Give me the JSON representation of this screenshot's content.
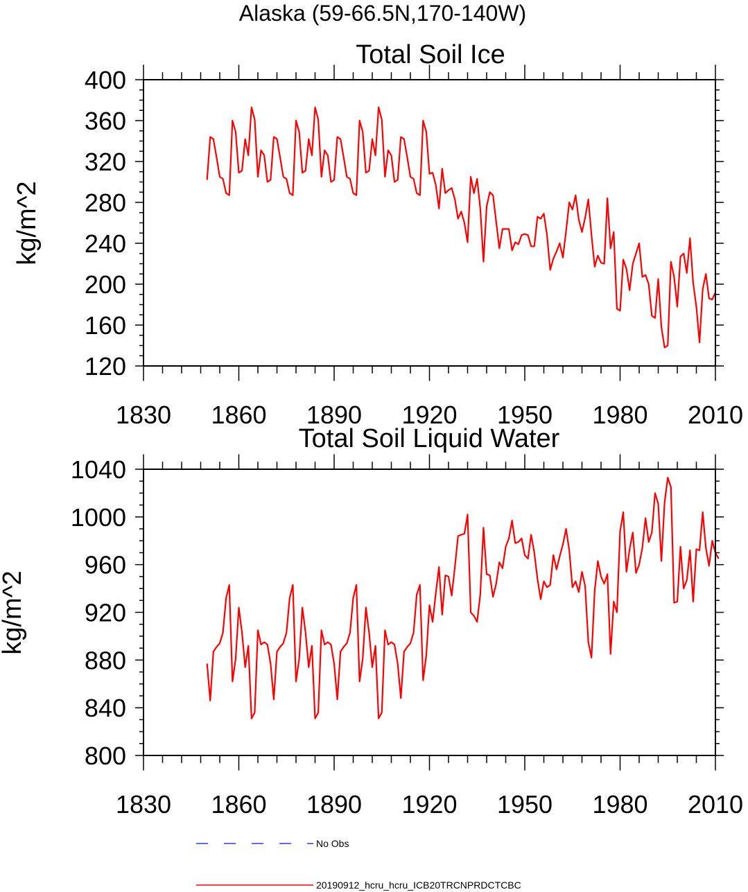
{
  "figure_title": "Alaska (59-66.5N,170-140W)",
  "legend": [
    {
      "label": "No Obs",
      "color": "#3333ff",
      "style": "dashed"
    },
    {
      "label": "20190912_hcru_hcru_ICB20TRCNPRDCTCBC",
      "color": "#ff0000",
      "style": "solid"
    }
  ],
  "chart_data": [
    {
      "type": "line",
      "title": "Total Soil Ice",
      "xlabel": "",
      "ylabel": "kg/m^2",
      "xlim": [
        1830,
        2010
      ],
      "ylim": [
        120,
        400
      ],
      "xticks": [
        1830,
        1860,
        1890,
        1920,
        1950,
        1980,
        2010
      ],
      "yticks": [
        120,
        160,
        200,
        240,
        280,
        320,
        360,
        400
      ],
      "series": [
        {
          "name": "20190912_hcru_hcru_ICB20TRCNPRDCTCBC",
          "color": "#ff0000",
          "x_start": 1850,
          "x_step": 1,
          "values": [
            302,
            344,
            342,
            324,
            305,
            303,
            289,
            287,
            360,
            349,
            309,
            311,
            342,
            326,
            373,
            361,
            305,
            331,
            326,
            300,
            302,
            344,
            342,
            324,
            305,
            303,
            289,
            287,
            360,
            349,
            309,
            311,
            342,
            326,
            373,
            361,
            305,
            331,
            326,
            300,
            302,
            344,
            342,
            324,
            305,
            303,
            289,
            287,
            360,
            349,
            309,
            311,
            342,
            326,
            373,
            361,
            305,
            331,
            326,
            300,
            302,
            344,
            342,
            324,
            305,
            303,
            289,
            287,
            360,
            349,
            308,
            309,
            297,
            274,
            313,
            289,
            292,
            294,
            283,
            264,
            271,
            260,
            241,
            305,
            289,
            303,
            274,
            222,
            276,
            290,
            287,
            261,
            235,
            254,
            254,
            254,
            233,
            241,
            239,
            248,
            249,
            248,
            237,
            237,
            266,
            264,
            269,
            248,
            214,
            225,
            232,
            240,
            226,
            252,
            280,
            273,
            287,
            263,
            251,
            265,
            283,
            248,
            217,
            228,
            221,
            220,
            284,
            235,
            251,
            176,
            174,
            224,
            215,
            194,
            220,
            230,
            240,
            207,
            209,
            200,
            169,
            167,
            205,
            158,
            138,
            140,
            222,
            207,
            178,
            227,
            230,
            211,
            245,
            201,
            178,
            143,
            195,
            210,
            186,
            185,
            192
          ]
        }
      ]
    },
    {
      "type": "line",
      "title": "Total Soil Liquid Water",
      "xlabel": "",
      "ylabel": "kg/m^2",
      "xlim": [
        1830,
        2010
      ],
      "ylim": [
        800,
        1040
      ],
      "xticks": [
        1830,
        1860,
        1890,
        1920,
        1950,
        1980,
        2010
      ],
      "yticks": [
        800,
        840,
        880,
        920,
        960,
        1000,
        1040
      ],
      "series": [
        {
          "name": "20190912_hcru_hcru_ICB20TRCNPRDCTCBC",
          "color": "#ff0000",
          "x_start": 1850,
          "x_step": 1,
          "values": [
            877,
            846,
            887,
            891,
            894,
            903,
            932,
            943,
            862,
            881,
            924,
            903,
            874,
            892,
            831,
            836,
            905,
            893,
            895,
            893,
            877,
            847,
            887,
            891,
            894,
            903,
            932,
            943,
            862,
            881,
            924,
            903,
            874,
            892,
            831,
            836,
            905,
            893,
            895,
            893,
            877,
            847,
            887,
            891,
            894,
            903,
            932,
            943,
            862,
            881,
            924,
            903,
            874,
            892,
            831,
            836,
            905,
            893,
            895,
            893,
            877,
            848,
            887,
            891,
            894,
            903,
            935,
            943,
            863,
            884,
            926,
            912,
            936,
            958,
            918,
            951,
            950,
            934,
            958,
            984,
            985,
            986,
            1002,
            920,
            917,
            912,
            935,
            991,
            952,
            951,
            933,
            944,
            962,
            957,
            975,
            982,
            997,
            978,
            979,
            982,
            968,
            965,
            985,
            970,
            948,
            931,
            946,
            941,
            943,
            968,
            956,
            967,
            977,
            990,
            972,
            941,
            946,
            937,
            954,
            942,
            895,
            882,
            938,
            963,
            950,
            944,
            952,
            885,
            929,
            920,
            988,
            1004,
            954,
            973,
            987,
            953,
            960,
            974,
            999,
            979,
            987,
            1020,
            1011,
            963,
            1012,
            1033,
            1025,
            928,
            929,
            975,
            940,
            947,
            972,
            929,
            973,
            972,
            1004,
            974,
            959,
            980,
            970,
            965
          ]
        }
      ]
    }
  ]
}
